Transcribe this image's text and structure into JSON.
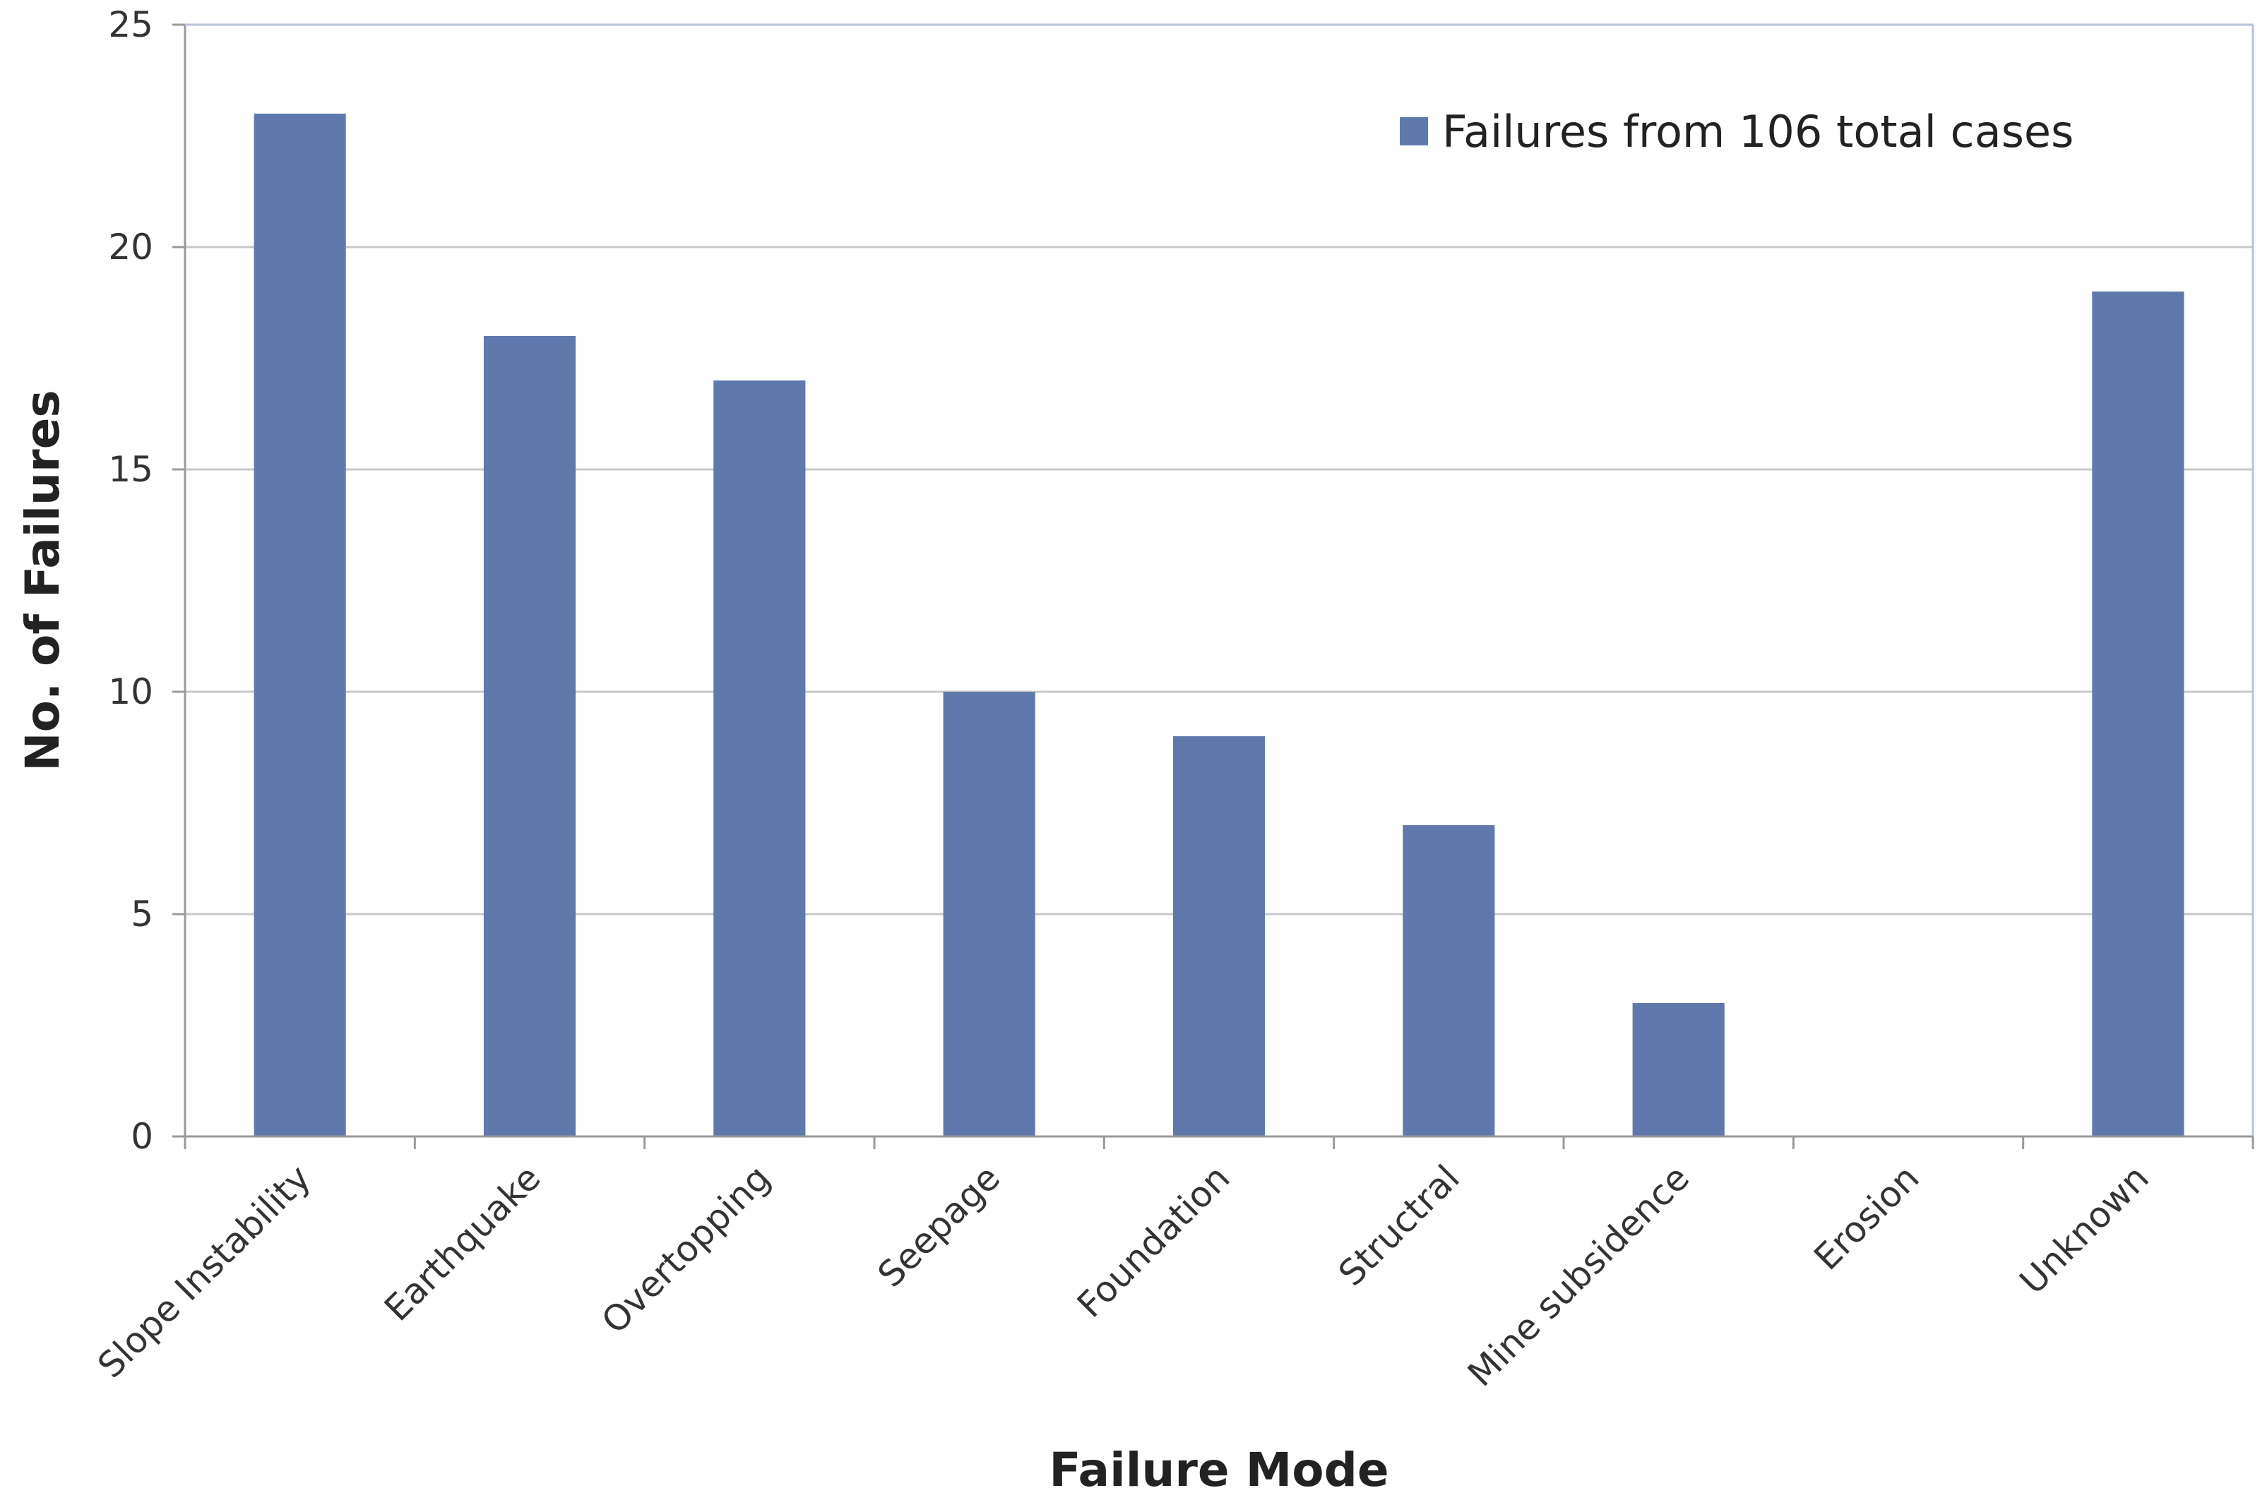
{
  "chart_data": {
    "type": "bar",
    "categories": [
      "Slope Instability",
      "Earthquake",
      "Overtopping",
      "Seepage",
      "Foundation",
      "Structral",
      "Mine subsidence",
      "Erosion",
      "Unknown"
    ],
    "series": [
      {
        "name": "Failures from 106 total cases",
        "values": [
          23,
          18,
          17,
          10,
          9,
          7,
          3,
          0,
          19
        ],
        "color": "#6079ad"
      }
    ],
    "xlabel": "Failure Mode",
    "ylabel": "No. of Failures",
    "ylim": [
      0,
      25
    ],
    "yticks": [
      0,
      5,
      10,
      15,
      20,
      25
    ],
    "grid": true,
    "legend_position": "top-right"
  }
}
